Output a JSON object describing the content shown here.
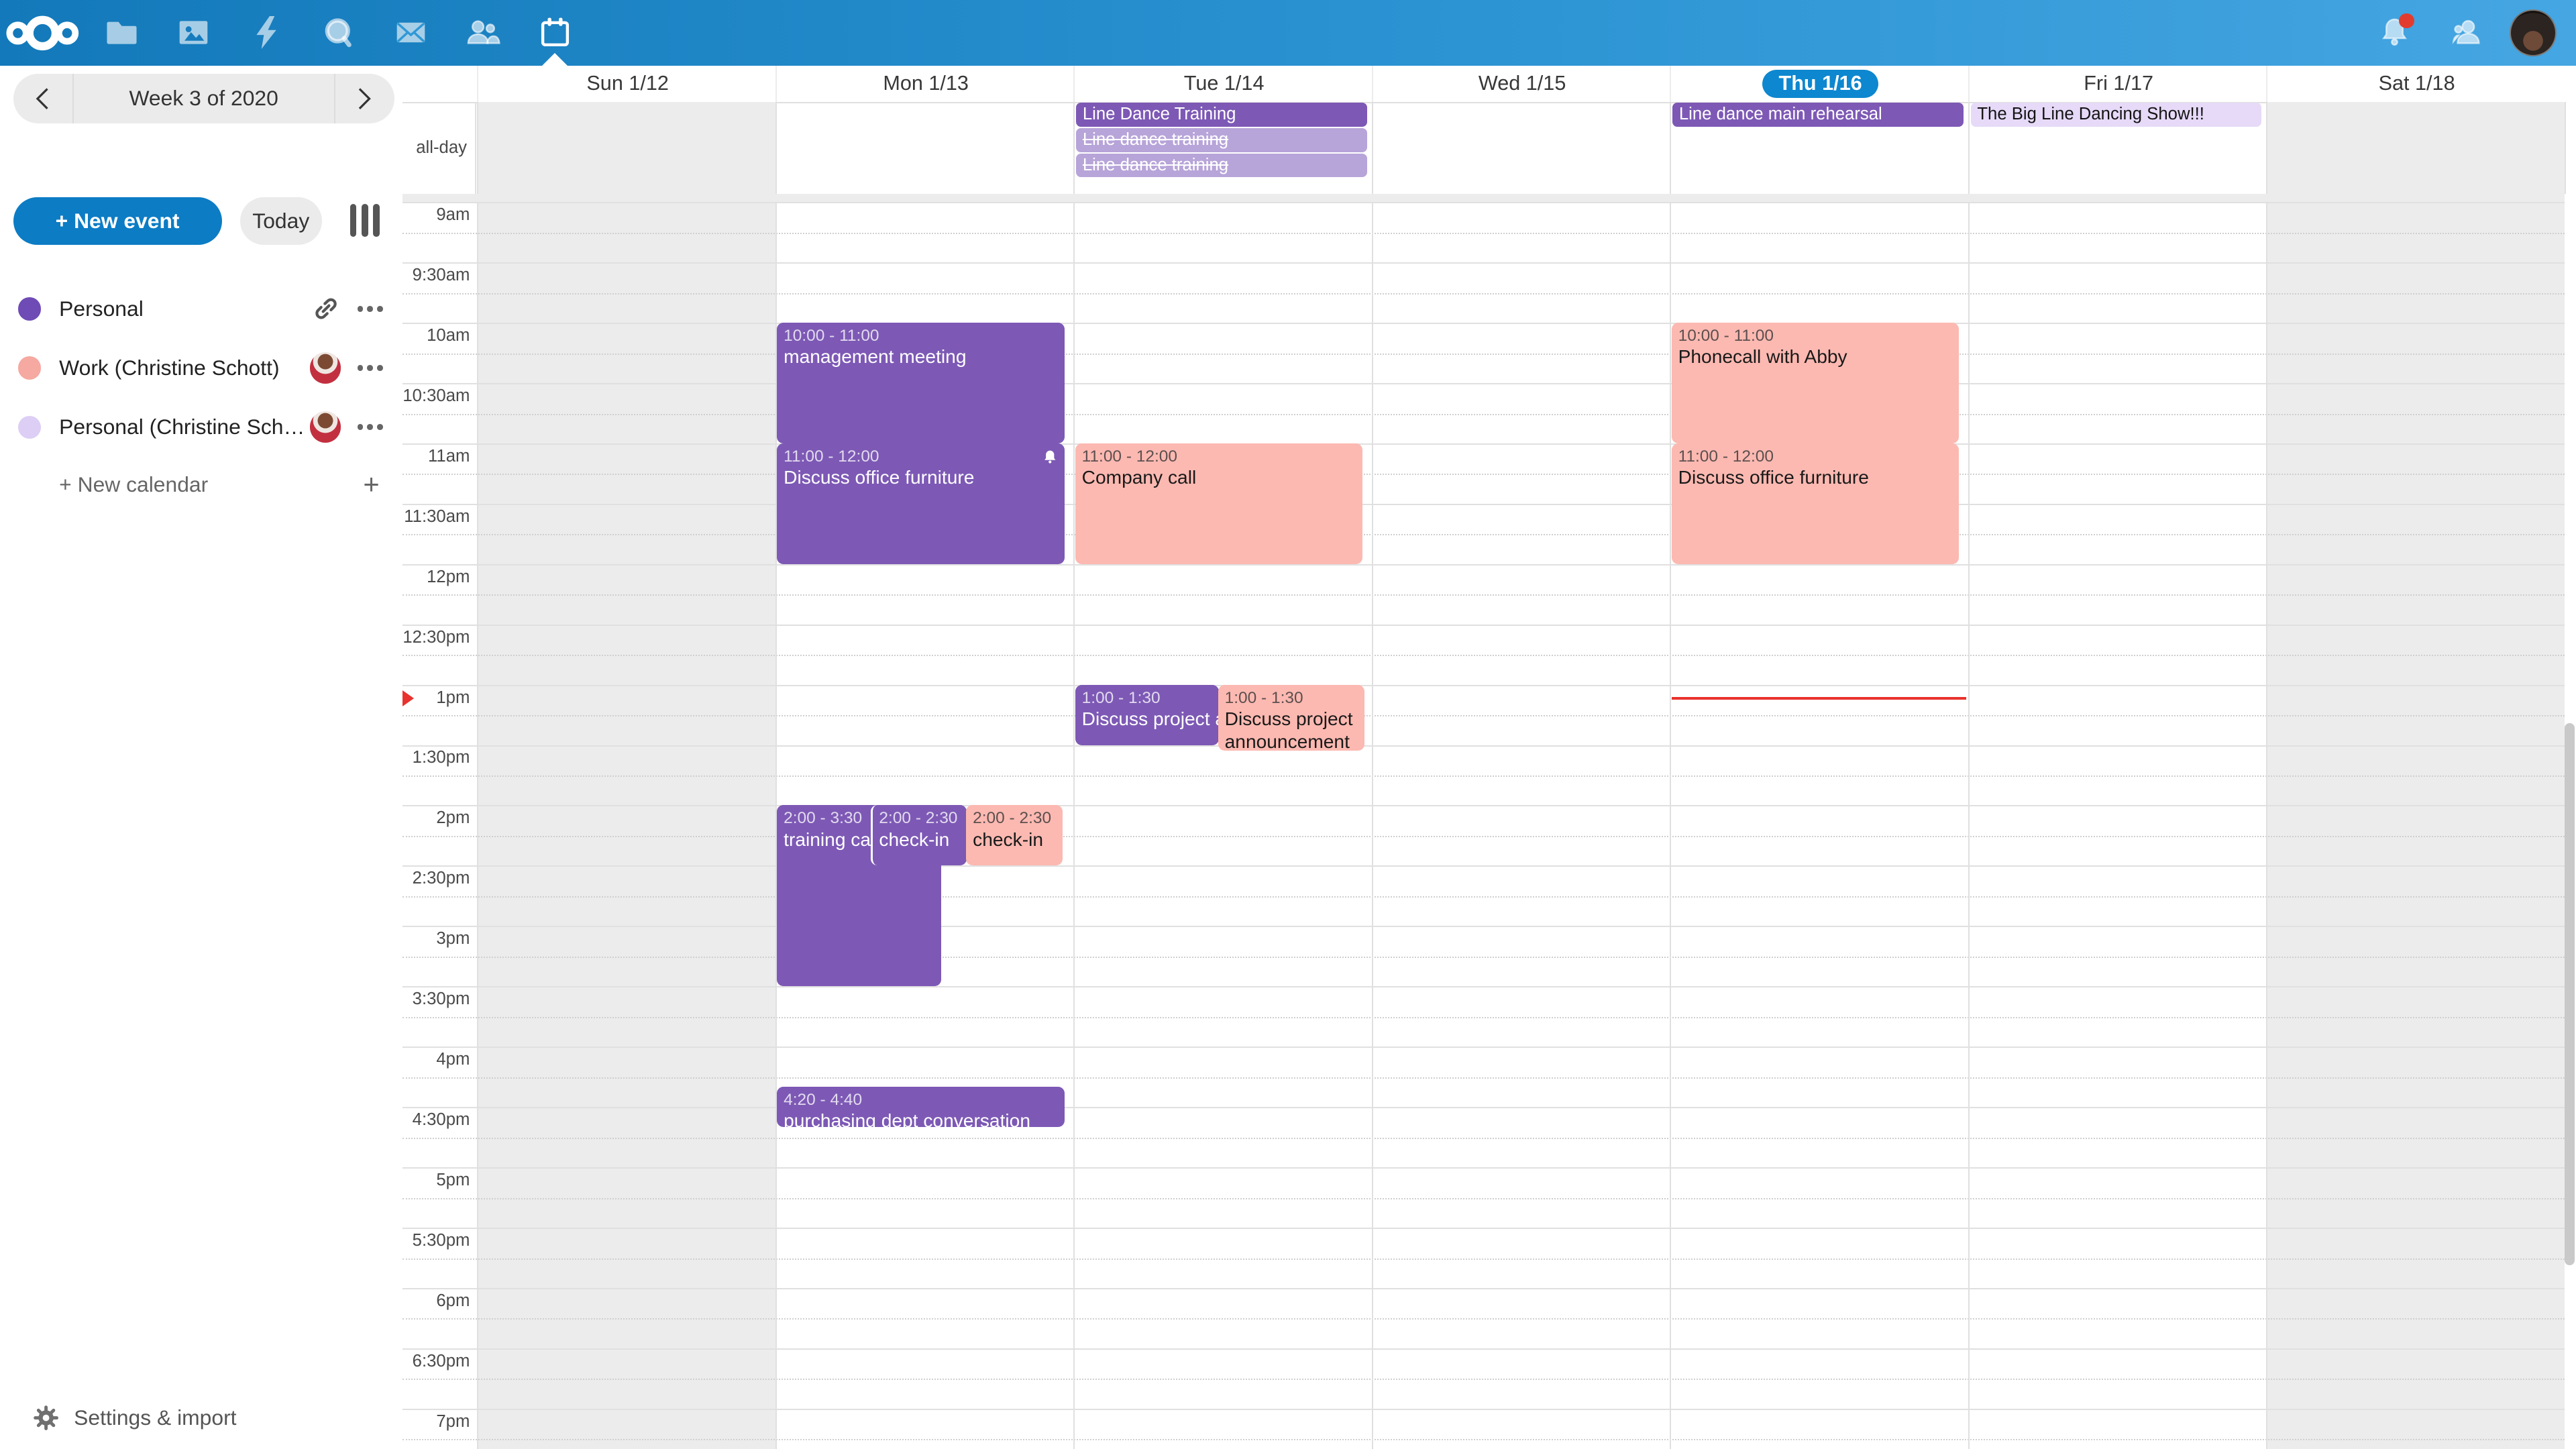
{
  "navbar": {
    "apps": [
      {
        "icon": "files-icon",
        "active": false
      },
      {
        "icon": "photos-icon",
        "active": false
      },
      {
        "icon": "activity-icon",
        "active": false
      },
      {
        "icon": "talk-icon",
        "active": false
      },
      {
        "icon": "mail-icon",
        "active": false
      },
      {
        "icon": "contacts-icon",
        "active": false
      },
      {
        "icon": "calendar-icon",
        "active": true
      }
    ],
    "notifications_unread": true
  },
  "sidebar": {
    "week_title": "Week 3 of 2020",
    "new_event_label": "+ New event",
    "today_label": "Today",
    "calendars": [
      {
        "name": "Personal",
        "color": "#6f4bb5",
        "trailing": "share-link"
      },
      {
        "name": "Work (Christine Schott)",
        "color": "#f5a9a1",
        "trailing": "avatar"
      },
      {
        "name": "Personal (Christine Scho…",
        "color": "#dccef5",
        "trailing": "avatar"
      }
    ],
    "new_calendar_label": "+ New calendar",
    "settings_label": "Settings & import"
  },
  "calendar": {
    "all_day_label": "all-day",
    "days": [
      {
        "label": "Sun 1/12",
        "today": false,
        "weekend": true
      },
      {
        "label": "Mon 1/13",
        "today": false,
        "weekend": false
      },
      {
        "label": "Tue 1/14",
        "today": false,
        "weekend": false
      },
      {
        "label": "Wed 1/15",
        "today": false,
        "weekend": false
      },
      {
        "label": "Thu 1/16",
        "today": true,
        "weekend": false
      },
      {
        "label": "Fri 1/17",
        "today": false,
        "weekend": false
      },
      {
        "label": "Sat 1/18",
        "today": false,
        "weekend": true
      }
    ],
    "time_labels": [
      "9am",
      "9:30am",
      "10am",
      "10:30am",
      "11am",
      "11:30am",
      "12pm",
      "12:30pm",
      "1pm",
      "1:30pm",
      "2pm",
      "2:30pm",
      "3pm",
      "3:30pm",
      "4pm",
      "4:30pm",
      "5pm",
      "5:30pm",
      "6pm",
      "6:30pm",
      "7pm"
    ],
    "allday_events": [
      {
        "day": 2,
        "title": "Line Dance Training",
        "style": "purple",
        "cancelled": false
      },
      {
        "day": 2,
        "title": "Line dance training",
        "style": "light",
        "cancelled": true
      },
      {
        "day": 2,
        "title": "Line dance training",
        "style": "light",
        "cancelled": true
      },
      {
        "day": 4,
        "title": "Line dance main rehearsal",
        "style": "purple",
        "cancelled": false
      },
      {
        "day": 5,
        "title": "The Big Line Dancing Show!!!",
        "style": "lavender",
        "cancelled": false
      }
    ],
    "events": [
      {
        "day": 1,
        "start": "10:00",
        "end": "11:00",
        "time_text": "10:00 - 11:00",
        "title": "management meeting",
        "style": "purple"
      },
      {
        "day": 1,
        "start": "11:00",
        "end": "12:00",
        "time_text": "11:00 - 12:00",
        "title": "Discuss office furniture",
        "style": "purple",
        "alarm": true
      },
      {
        "day": 2,
        "start": "11:00",
        "end": "12:00",
        "time_text": "11:00 - 12:00",
        "title": "Company call",
        "style": "salmon"
      },
      {
        "day": 4,
        "start": "10:00",
        "end": "11:00",
        "time_text": "10:00 - 11:00",
        "title": "Phonecall with Abby",
        "style": "salmon"
      },
      {
        "day": 4,
        "start": "11:00",
        "end": "12:00",
        "time_text": "11:00 - 12:00",
        "title": "Discuss office furniture",
        "style": "salmon"
      },
      {
        "day": 2,
        "start": "13:00",
        "end": "13:30",
        "time_text": "1:00 - 1:30",
        "title": "Discuss project announcement",
        "style": "purple",
        "frac": {
          "x": 0,
          "w": 0.5
        }
      },
      {
        "day": 2,
        "start": "13:00",
        "end": "13:30",
        "time_text": "1:00 - 1:30",
        "title": "Discuss project announcement",
        "style": "salmon",
        "frac": {
          "x": 0.497,
          "w": 0.51
        },
        "hpx": 40,
        "wrap": true
      },
      {
        "day": 1,
        "start": "14:00",
        "end": "15:30",
        "time_text": "2:00 - 3:30",
        "title": "training call",
        "style": "purple",
        "frac": {
          "x": 0,
          "w": 0.57
        }
      },
      {
        "day": 1,
        "start": "14:00",
        "end": "14:30",
        "time_text": "2:00 - 2:30",
        "title": "check-in",
        "style": "purple",
        "frac": {
          "x": 0.325,
          "w": 0.335
        },
        "white_edge": true
      },
      {
        "day": 1,
        "start": "14:00",
        "end": "14:30",
        "time_text": "2:00 - 2:30",
        "title": "check-in",
        "style": "salmon",
        "frac": {
          "x": 0.658,
          "w": 0.335
        }
      },
      {
        "day": 1,
        "start": "16:20",
        "end": "16:40",
        "time_text": "4:20 - 4:40",
        "title": "purchasing dept conversation",
        "style": "purple"
      }
    ],
    "now_indicator": {
      "day": 4,
      "time": "13:06"
    }
  }
}
